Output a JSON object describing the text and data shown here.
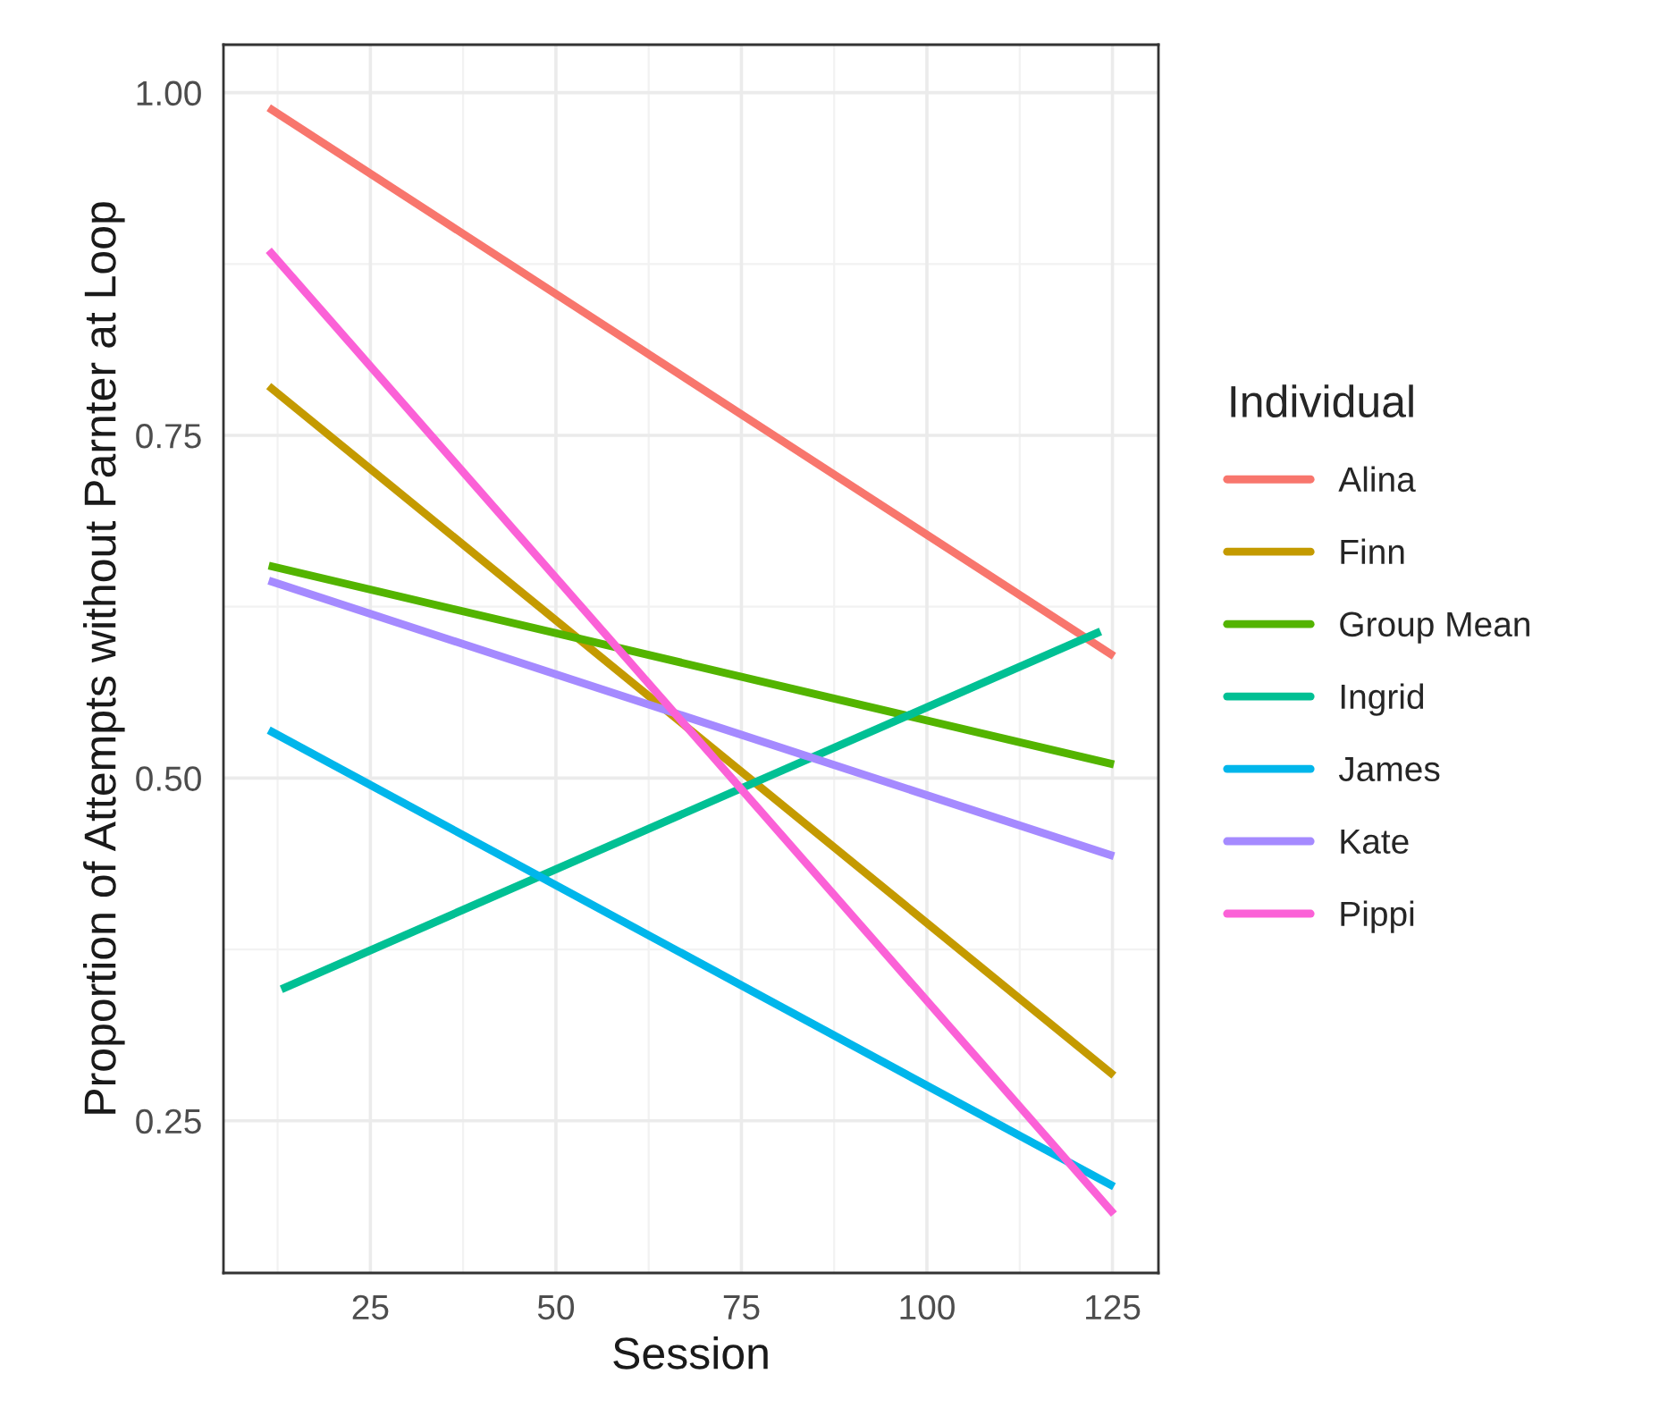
{
  "chart_data": {
    "type": "line",
    "xlabel": "Session",
    "ylabel": "Proportion of Attempts without Parnter at Loop",
    "legend_title": "Individual",
    "series": [
      {
        "name": "Alina",
        "color": "#f8766d",
        "x": [
          11.3,
          125.2
        ],
        "values": [
          0.989,
          0.589
        ]
      },
      {
        "name": "Finn",
        "color": "#c49a00",
        "x": [
          11.3,
          125.2
        ],
        "values": [
          0.786,
          0.283
        ]
      },
      {
        "name": "Group Mean",
        "color": "#53b400",
        "x": [
          11.3,
          125.2
        ],
        "values": [
          0.655,
          0.51
        ]
      },
      {
        "name": "Ingrid",
        "color": "#00c094",
        "x": [
          13.0,
          123.4
        ],
        "values": [
          0.346,
          0.607
        ]
      },
      {
        "name": "James",
        "color": "#00b6eb",
        "x": [
          11.3,
          125.2
        ],
        "values": [
          0.535,
          0.202
        ]
      },
      {
        "name": "Kate",
        "color": "#a58aff",
        "x": [
          11.3,
          125.2
        ],
        "values": [
          0.644,
          0.443
        ]
      },
      {
        "name": "Pippi",
        "color": "#fb61d7",
        "x": [
          11.3,
          125.2
        ],
        "values": [
          0.885,
          0.182
        ]
      }
    ],
    "xlim": [
      5.2,
      131.2
    ],
    "ylim": [
      0.139,
      1.035
    ],
    "xticks": [
      25,
      50,
      75,
      100,
      125
    ],
    "yticks": [
      {
        "value": 0.25,
        "label": "0.25"
      },
      {
        "value": 0.5,
        "label": "0.50"
      },
      {
        "value": 0.75,
        "label": "0.75"
      },
      {
        "value": 1.0,
        "label": "1.00"
      }
    ],
    "grid": true,
    "legend": "right",
    "line_style": "solid",
    "marker": "none"
  }
}
